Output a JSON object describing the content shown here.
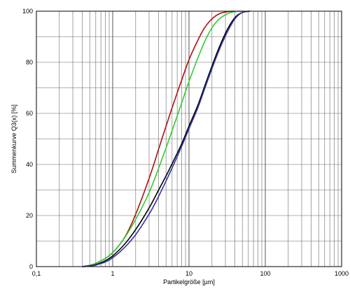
{
  "chart_data": {
    "type": "line",
    "xlabel": "Partikelgröße  [µm]",
    "ylabel": "Summenkurve Q3(x) [%]",
    "x_scale": "log",
    "xlim": [
      0.1,
      1000
    ],
    "ylim": [
      0,
      100
    ],
    "grid": true,
    "x_ticks": [
      {
        "value": 0.1,
        "label": "0,1"
      },
      {
        "value": 1,
        "label": "1"
      },
      {
        "value": 10,
        "label": "10"
      },
      {
        "value": 100,
        "label": "100"
      },
      {
        "value": 1000,
        "label": "1000"
      }
    ],
    "y_ticks": [
      {
        "value": 0,
        "label": "0"
      },
      {
        "value": 20,
        "label": "20"
      },
      {
        "value": 40,
        "label": "40"
      },
      {
        "value": 60,
        "label": "60"
      },
      {
        "value": 80,
        "label": "80"
      },
      {
        "value": 100,
        "label": "100"
      }
    ],
    "series": [
      {
        "color": "#b01010",
        "x": [
          0.4,
          0.5,
          0.6,
          0.8,
          1.0,
          1.3,
          1.6,
          2.0,
          2.5,
          3.2,
          4.0,
          5.0,
          6.3,
          8.0,
          10,
          13,
          16,
          20,
          25,
          32,
          40
        ],
        "y": [
          0,
          0.5,
          1.3,
          3.2,
          5.5,
          9.5,
          14,
          20.5,
          28,
          37,
          46,
          55,
          64,
          73,
          81,
          88.5,
          93.5,
          97,
          99,
          99.8,
          100
        ]
      },
      {
        "color": "#33cc33",
        "x": [
          0.4,
          0.5,
          0.6,
          0.8,
          1.0,
          1.3,
          1.6,
          2.0,
          2.5,
          3.2,
          4.0,
          5.0,
          6.3,
          8.0,
          10,
          13,
          16,
          20,
          25,
          32,
          40,
          50
        ],
        "y": [
          0,
          0.5,
          1.3,
          3.2,
          5.5,
          9.5,
          13.5,
          18.5,
          24,
          31,
          38.5,
          46.5,
          55,
          64,
          72.5,
          81.5,
          88,
          93.5,
          97,
          99,
          99.8,
          100
        ]
      },
      {
        "color": "#000000",
        "x": [
          0.4,
          0.5,
          0.6,
          0.8,
          1.0,
          1.3,
          1.6,
          2.0,
          2.5,
          3.2,
          4.0,
          5.0,
          6.3,
          8.0,
          10,
          13,
          16,
          20,
          25,
          32,
          40,
          50,
          63
        ],
        "y": [
          0,
          0.3,
          0.8,
          2.3,
          4.2,
          7.4,
          10.5,
          14.5,
          19,
          24.5,
          30,
          35.5,
          41.5,
          48,
          55,
          63,
          70.5,
          78.5,
          86,
          93,
          97.5,
          99.5,
          100
        ]
      },
      {
        "color": "#3333aa",
        "x": [
          0.4,
          0.5,
          0.6,
          0.8,
          1.0,
          1.3,
          1.6,
          2.0,
          2.5,
          3.2,
          4.0,
          5.0,
          6.3,
          8.0,
          10,
          13,
          16,
          20,
          25,
          32,
          40,
          50,
          63
        ],
        "y": [
          0,
          0.2,
          0.6,
          1.8,
          3.5,
          6.3,
          9,
          12.5,
          16.8,
          22,
          27.5,
          33.5,
          40,
          47,
          54,
          62,
          69.5,
          77.5,
          85,
          92,
          97,
          99.5,
          100
        ]
      }
    ]
  }
}
